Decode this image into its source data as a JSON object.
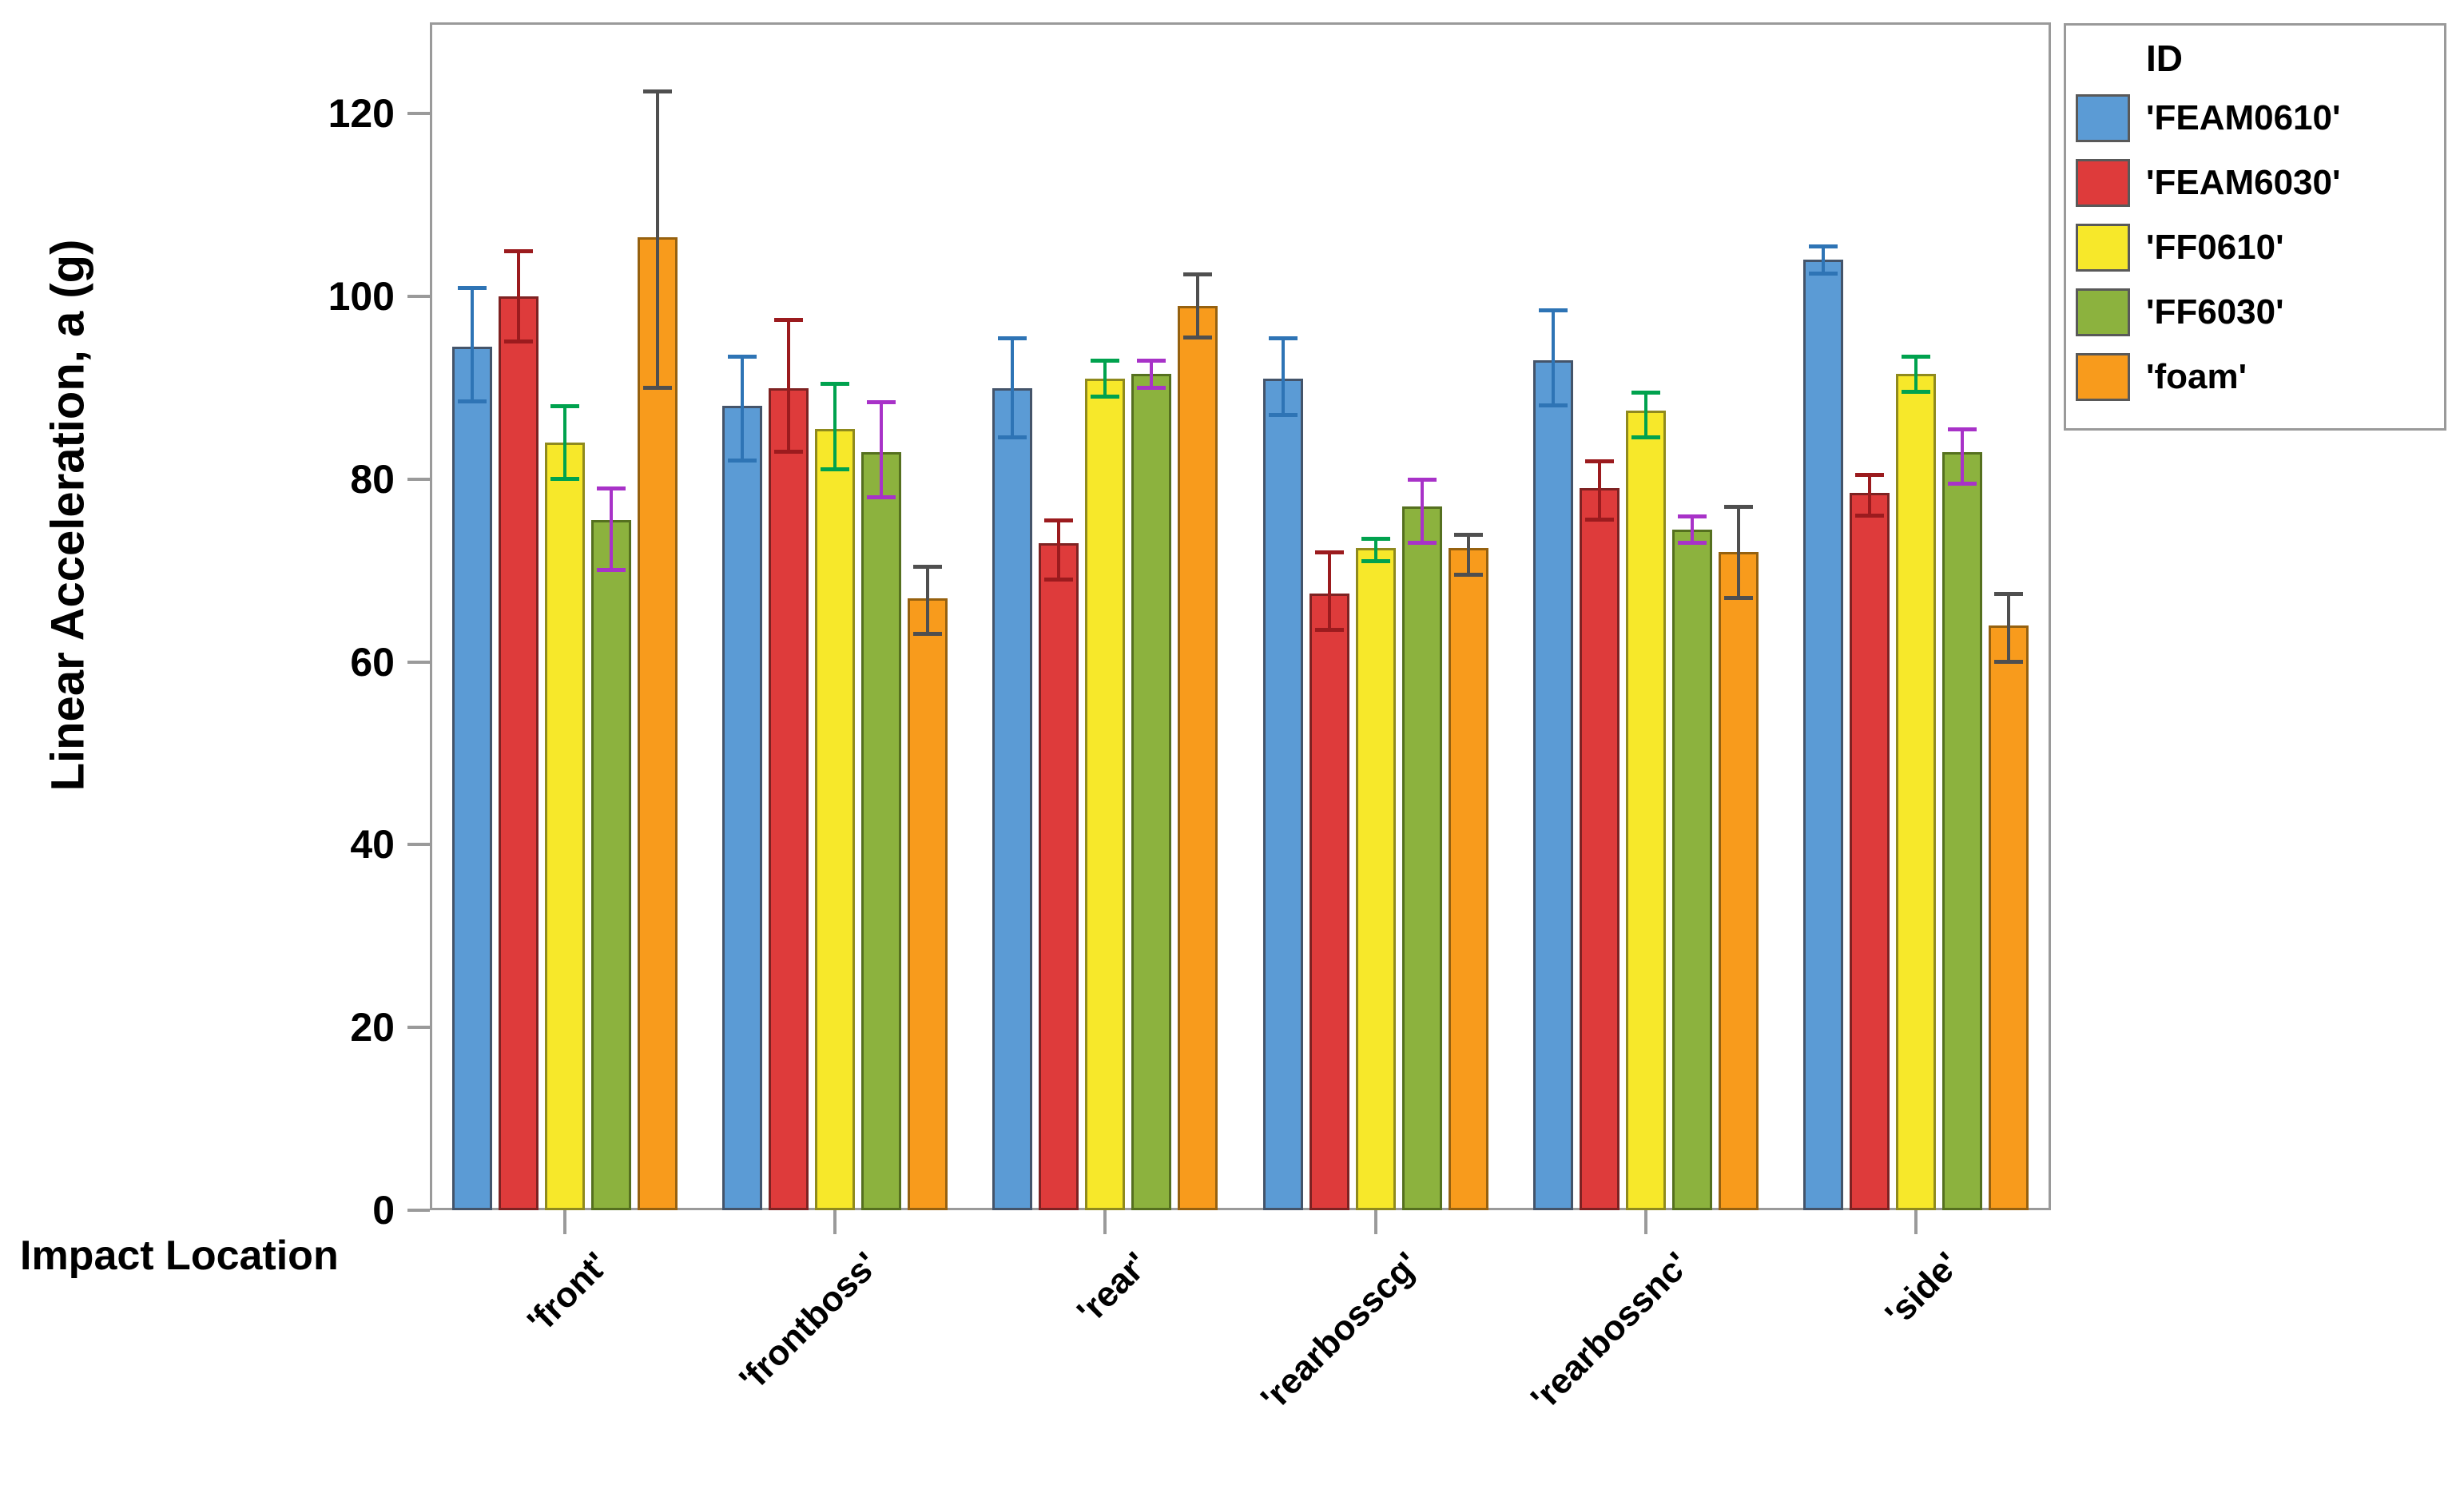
{
  "chart_data": {
    "type": "bar",
    "title": "",
    "xlabel": "Impact Location",
    "ylabel": "Linear Acceleration, a (g)",
    "legend_title": "ID",
    "legend_position": "outside-top-right",
    "grid": false,
    "ylim": [
      0,
      130
    ],
    "yticks": [
      0,
      20,
      40,
      60,
      80,
      100,
      120
    ],
    "categories": [
      "'front'",
      "'frontboss'",
      "'rear'",
      "'rearbosscg'",
      "'rearbossnc'",
      "'side'"
    ],
    "series": [
      {
        "name": "'FEAM0610'",
        "color": "#5B9BD5",
        "edge_color": "#44546A",
        "error_color": "#2E74B5",
        "values": [
          94.5,
          88,
          90,
          91,
          93,
          104
        ],
        "err_hi": [
          101,
          93.5,
          95.5,
          95.5,
          98.5,
          105.5
        ],
        "err_lo": [
          88.5,
          82,
          84.5,
          87,
          88,
          102.5
        ]
      },
      {
        "name": "'FEAM6030'",
        "color": "#DE3B3B",
        "edge_color": "#7E2222",
        "error_color": "#9B1B1E",
        "values": [
          100,
          90,
          73,
          67.5,
          79,
          78.5
        ],
        "err_hi": [
          105,
          97.5,
          75.5,
          72,
          82,
          80.5
        ],
        "err_lo": [
          95,
          83,
          69,
          63.5,
          75.5,
          76
        ]
      },
      {
        "name": "'FF0610'",
        "color": "#F7E82A",
        "edge_color": "#8F8A1E",
        "error_color": "#00A24E",
        "values": [
          84,
          85.5,
          91,
          72.5,
          87.5,
          91.5
        ],
        "err_hi": [
          88,
          90.5,
          93,
          73.5,
          89.5,
          93.5
        ],
        "err_lo": [
          80,
          81,
          89,
          71,
          84.5,
          89.5
        ]
      },
      {
        "name": "'FF6030'",
        "color": "#8CB23E",
        "edge_color": "#55701F",
        "error_color": "#A832C8",
        "values": [
          75.5,
          83,
          91.5,
          77,
          74.5,
          83
        ],
        "err_hi": [
          79,
          88.5,
          93,
          80,
          76,
          85.5
        ],
        "err_lo": [
          70,
          78,
          90,
          73,
          73,
          79.5
        ]
      },
      {
        "name": "'foam'",
        "color": "#F89B1C",
        "edge_color": "#96610F",
        "error_color": "#4F4F4F",
        "values": [
          106.5,
          67,
          99,
          72.5,
          72,
          64
        ],
        "err_hi": [
          122.5,
          70.5,
          102.5,
          74,
          77,
          67.5
        ],
        "err_lo": [
          90,
          63,
          95.5,
          69.5,
          67,
          60
        ]
      }
    ]
  }
}
